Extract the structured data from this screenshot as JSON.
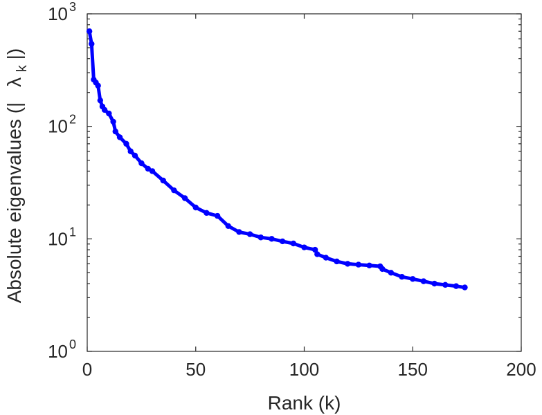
{
  "chart_data": {
    "type": "line",
    "xlabel": "Rank (k)",
    "ylabel_prefix": "Absolute eigenvalues (|",
    "ylabel_symbol": "λ",
    "ylabel_subscript": "k",
    "ylabel_suffix": "|)",
    "xlim": [
      0,
      200
    ],
    "ylim": [
      1,
      1000
    ],
    "yscale": "log",
    "x_ticks": [
      0,
      50,
      100,
      150,
      200
    ],
    "x_tick_labels": [
      "0",
      "50",
      "100",
      "150",
      "200"
    ],
    "y_ticks": [
      1,
      10,
      100,
      1000
    ],
    "y_tick_base": "10",
    "y_tick_exponents": [
      "0",
      "1",
      "2",
      "3"
    ],
    "grid": false,
    "color": "#0000ff",
    "marker": "circle",
    "series": [
      {
        "x": [
          1,
          2,
          3,
          4,
          5,
          6,
          7,
          8,
          10,
          12,
          13,
          15,
          18,
          20,
          22,
          25,
          28,
          30,
          35,
          40,
          45,
          50,
          55,
          60,
          65,
          70,
          75,
          80,
          85,
          90,
          95,
          100,
          105,
          106,
          110,
          115,
          120,
          125,
          130,
          135,
          136,
          140,
          145,
          150,
          155,
          160,
          165,
          170,
          174
        ],
        "y": [
          700,
          540,
          260,
          245,
          230,
          170,
          150,
          140,
          130,
          110,
          90,
          80,
          70,
          60,
          55,
          47,
          42,
          40,
          33,
          27,
          23,
          19,
          17,
          16,
          13,
          11.5,
          11,
          10.3,
          10,
          9.5,
          9.1,
          8.4,
          8.0,
          7.3,
          6.8,
          6.3,
          6.0,
          5.9,
          5.8,
          5.7,
          5.4,
          5.0,
          4.6,
          4.4,
          4.2,
          4.0,
          3.9,
          3.8,
          3.7
        ]
      }
    ]
  }
}
